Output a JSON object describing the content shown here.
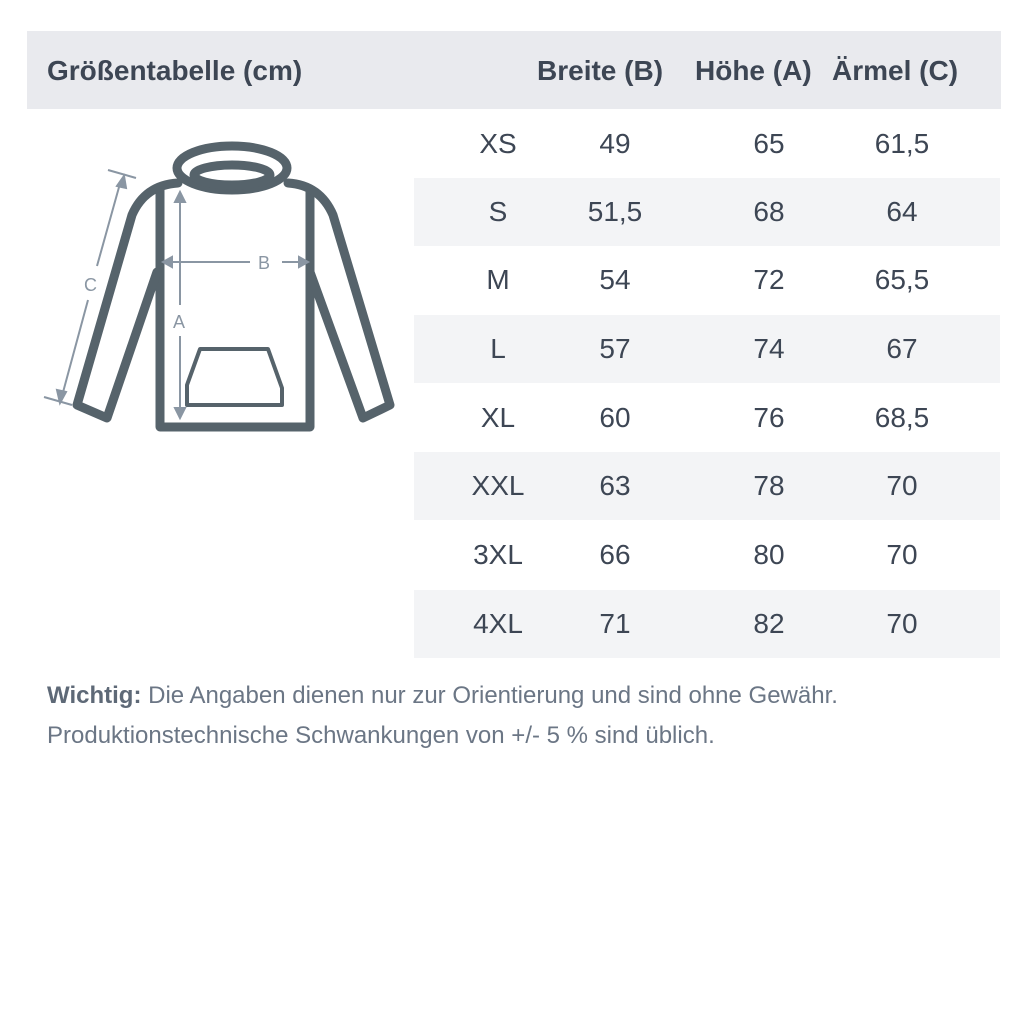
{
  "header": {
    "title": "Größentabelle (cm)",
    "columns": [
      "Breite (B)",
      "Höhe (A)",
      "Ärmel (C)"
    ]
  },
  "rows": [
    {
      "size": "XS",
      "b": "49",
      "a": "65",
      "c": "61,5"
    },
    {
      "size": "S",
      "b": "51,5",
      "a": "68",
      "c": "64"
    },
    {
      "size": "M",
      "b": "54",
      "a": "72",
      "c": "65,5"
    },
    {
      "size": "L",
      "b": "57",
      "a": "74",
      "c": "67"
    },
    {
      "size": "XL",
      "b": "60",
      "a": "76",
      "c": "68,5"
    },
    {
      "size": "XXL",
      "b": "63",
      "a": "78",
      "c": "70"
    },
    {
      "size": "3XL",
      "b": "66",
      "a": "80",
      "c": "70"
    },
    {
      "size": "4XL",
      "b": "71",
      "a": "82",
      "c": "70"
    }
  ],
  "diagram": {
    "labels": {
      "a": "A",
      "b": "B",
      "c": "C"
    },
    "garment": "hoodie"
  },
  "note": {
    "bold": "Wichtig:",
    "line1": "Die Angaben dienen nur zur Orientierung und sind ohne Gewähr.",
    "line2": "Produktionstechnische Schwankungen von +/- 5 % sind üblich."
  },
  "colors": {
    "header_bg": "#e9eaee",
    "stripe": "#f3f4f6",
    "garment": "#56636b",
    "measure": "#8a96a3"
  }
}
